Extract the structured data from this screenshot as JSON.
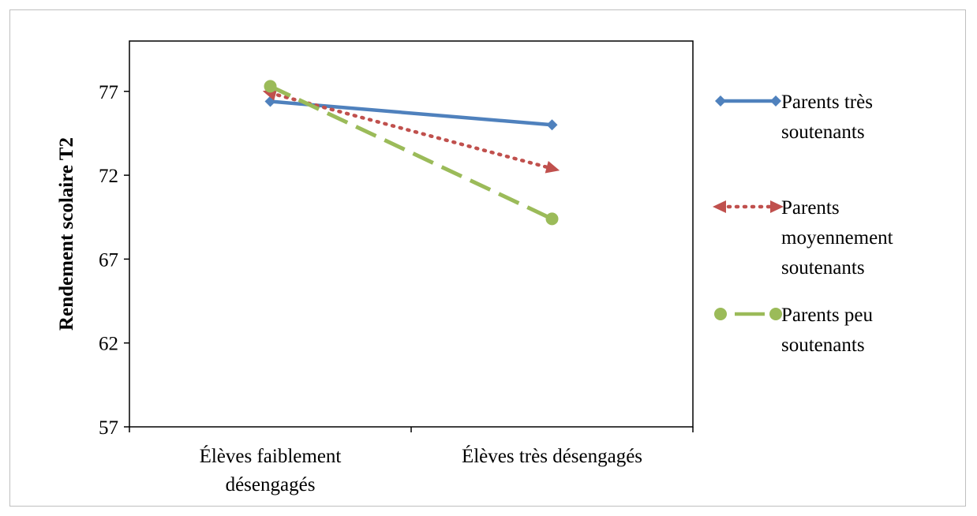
{
  "chart_data": {
    "type": "line",
    "title": "",
    "ylabel": "Rendement scolaire T2",
    "xlabel": "",
    "categories": [
      [
        "Élèves faiblement",
        "désengagés"
      ],
      [
        "Élèves très désengagés"
      ]
    ],
    "ylim": [
      57,
      80
    ],
    "yticks": [
      57,
      62,
      67,
      72,
      77
    ],
    "grid": false,
    "legend_position": "right",
    "series": [
      {
        "name": [
          "Parents très",
          "soutenants"
        ],
        "values": [
          76.4,
          75.0
        ],
        "color": "#4f81bd",
        "dash": "solid",
        "marker": "diamond"
      },
      {
        "name": [
          "Parents",
          "moyennement",
          "soutenants"
        ],
        "values": [
          76.9,
          72.4
        ],
        "color": "#c0504d",
        "dash": "dotted",
        "marker": "triangle"
      },
      {
        "name": [
          "Parents peu",
          "soutenants"
        ],
        "values": [
          77.3,
          69.4
        ],
        "color": "#9bbb59",
        "dash": "dashed",
        "marker": "circle"
      }
    ]
  }
}
